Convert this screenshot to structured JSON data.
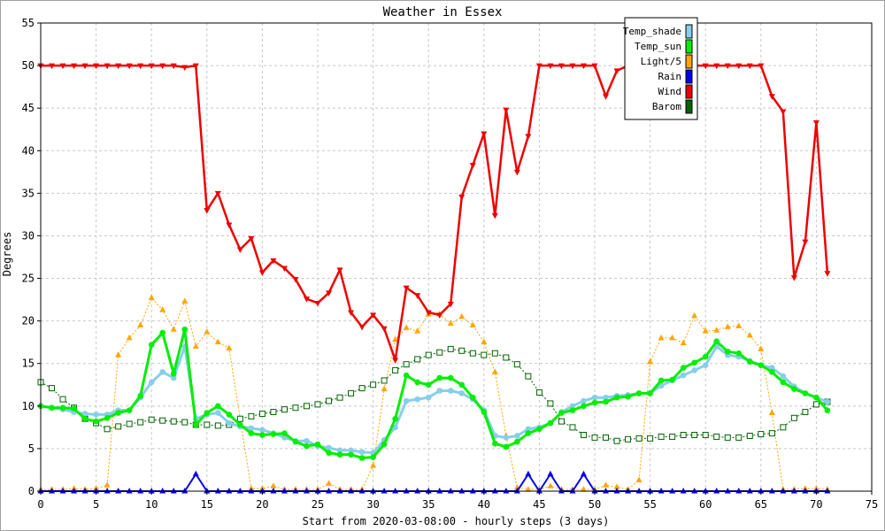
{
  "chart_data": {
    "type": "line",
    "title": "Weather in Essex",
    "xlabel": "Start from 2020-03-08:00 - hourly steps (3 days)",
    "ylabel": "Degrees",
    "xlim": [
      0,
      75
    ],
    "ylim": [
      0,
      55
    ],
    "xticks": [
      0,
      5,
      10,
      15,
      20,
      25,
      30,
      35,
      40,
      45,
      50,
      55,
      60,
      65,
      70,
      75
    ],
    "yticks": [
      0,
      5,
      10,
      15,
      20,
      25,
      30,
      35,
      40,
      45,
      50,
      55
    ],
    "grid": true,
    "legend_position": "top-right",
    "series": [
      {
        "name": "Temp_shade",
        "color": "#87ceeb",
        "marker": "circle",
        "values": [
          10,
          9.8,
          9.6,
          9.3,
          9.1,
          9,
          9,
          9.5,
          9.5,
          11,
          12.8,
          14,
          13.3,
          17,
          8.5,
          9,
          9.2,
          8,
          7.6,
          7.4,
          7.2,
          6.8,
          6.3,
          5.9,
          5.9,
          5.3,
          5.1,
          4.8,
          4.8,
          4.6,
          4.5,
          6,
          7.5,
          10.6,
          10.8,
          11,
          11.8,
          11.8,
          11.5,
          10.8,
          9.5,
          6.5,
          6.3,
          6.5,
          7.3,
          7.5,
          8,
          9.3,
          10,
          10.6,
          11,
          11,
          11.2,
          11.3,
          11.5,
          11.5,
          12.4,
          13,
          13.6,
          14.2,
          14.8,
          17,
          16,
          15.8,
          15.3,
          14.8,
          14.5,
          13.5,
          12.3,
          11.5,
          11,
          10.5
        ]
      },
      {
        "name": "Temp_sun",
        "color": "#00ee00",
        "marker": "circle",
        "values": [
          10,
          9.8,
          9.8,
          9.7,
          8.5,
          8.2,
          8.6,
          9.2,
          9.5,
          11.2,
          17.2,
          18.6,
          13.8,
          19,
          7.8,
          9.2,
          10,
          9,
          7.8,
          6.8,
          6.6,
          6.7,
          6.8,
          5.8,
          5.3,
          5.5,
          4.5,
          4.3,
          4.3,
          3.9,
          4,
          5.5,
          8.5,
          13.6,
          12.8,
          12.5,
          13.3,
          13.3,
          12.5,
          11,
          9.3,
          5.6,
          5.2,
          5.8,
          6.8,
          7.3,
          8,
          9.2,
          9.5,
          10,
          10.4,
          10.5,
          11,
          11.1,
          11.5,
          11.5,
          13,
          13.1,
          14.5,
          15.1,
          15.8,
          17.6,
          16.4,
          16.2,
          15.2,
          14.8,
          14,
          12.8,
          12,
          11.5,
          11,
          9.5
        ]
      },
      {
        "name": "Light/5",
        "color": "#ffa500",
        "marker": "triangle",
        "values": [
          0.2,
          0.2,
          0.2,
          0.3,
          0.2,
          0.3,
          0.7,
          16,
          18,
          19.5,
          22.7,
          21.3,
          19,
          22.3,
          17,
          18.7,
          17.5,
          16.8,
          8.5,
          0.3,
          0.3,
          0.6,
          0.2,
          0.2,
          0.2,
          0.2,
          0.9,
          0.2,
          0.2,
          0.2,
          3,
          12,
          17.8,
          19.2,
          18.8,
          20.8,
          20.8,
          19.7,
          20.5,
          19.5,
          17.5,
          14,
          6.5,
          0.4,
          0.2,
          0.2,
          0.6,
          0.2,
          0.2,
          0.2,
          0.2,
          0.7,
          0.5,
          0.2,
          1.3,
          15.2,
          18,
          18,
          17.4,
          20.6,
          18.8,
          18.9,
          19.3,
          19.4,
          18.3,
          16.7,
          9.2,
          0.2,
          0.2,
          0.3,
          0.3,
          0.2
        ]
      },
      {
        "name": "Rain",
        "color": "#0000ee",
        "marker": "triangle",
        "values": [
          0,
          0,
          0,
          0,
          0,
          0,
          0,
          0,
          0,
          0,
          0,
          0,
          0,
          0,
          2,
          0,
          0,
          0,
          0,
          0,
          0,
          0,
          0,
          0,
          0,
          0,
          0,
          0,
          0,
          0,
          0,
          0,
          0,
          0,
          0,
          0,
          0,
          0,
          0,
          0,
          0,
          0,
          0,
          0,
          2,
          0,
          2,
          0,
          0,
          2,
          0,
          0,
          0,
          0,
          0,
          0,
          0,
          0,
          0,
          0,
          0,
          0,
          0,
          0,
          0,
          0,
          0,
          0,
          0,
          0,
          0,
          0
        ]
      },
      {
        "name": "Wind",
        "color": "#ee0000",
        "marker": "triangle-down",
        "values": [
          50,
          50,
          50,
          50,
          50,
          50,
          50,
          50,
          50,
          50,
          50,
          50,
          50,
          49.8,
          50,
          33,
          35,
          31.3,
          28.4,
          29.7,
          25.7,
          27.1,
          26.2,
          24.9,
          22.6,
          22.1,
          23.3,
          26,
          21,
          19.3,
          20.7,
          19.1,
          15.4,
          23.9,
          23,
          21,
          20.7,
          22,
          34.6,
          38.3,
          42,
          32.4,
          44.8,
          37.5,
          41.7,
          50,
          50,
          50,
          50,
          50,
          50,
          46.4,
          49.4,
          50,
          50,
          50,
          50,
          50,
          50,
          50,
          50,
          50,
          50,
          50,
          50,
          50,
          46.4,
          44.6,
          25.1,
          29.3,
          43.3,
          25.6
        ]
      },
      {
        "name": "Barom",
        "color": "#006400",
        "marker": "square",
        "values": [
          12.8,
          12.1,
          10.8,
          9.8,
          8.5,
          8,
          7.3,
          7.6,
          7.9,
          8.1,
          8.4,
          8.3,
          8.2,
          8.1,
          7.8,
          7.8,
          7.7,
          7.8,
          8.5,
          8.8,
          9.1,
          9.3,
          9.6,
          9.8,
          10,
          10.2,
          10.6,
          11,
          11.5,
          12.1,
          12.5,
          13,
          14.2,
          14.9,
          15.5,
          16,
          16.3,
          16.7,
          16.5,
          16.2,
          16,
          16.2,
          15.7,
          14.9,
          13.5,
          11.6,
          10.3,
          8.2,
          7.5,
          6.6,
          6.3,
          6.3,
          5.9,
          6.1,
          6.2,
          6.2,
          6.4,
          6.4,
          6.6,
          6.6,
          6.6,
          6.4,
          6.3,
          6.3,
          6.5,
          6.7,
          6.8,
          7.5,
          8.6,
          9.3,
          10.2,
          10.5
        ]
      }
    ]
  }
}
